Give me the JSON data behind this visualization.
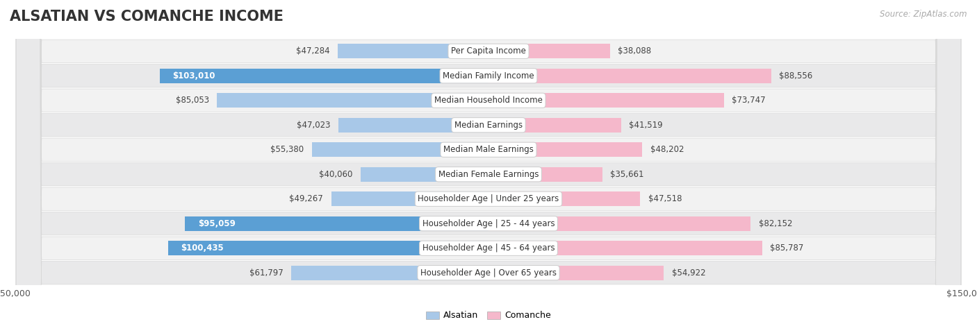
{
  "title": "ALSATIAN VS COMANCHE INCOME",
  "source": "Source: ZipAtlas.com",
  "categories": [
    "Per Capita Income",
    "Median Family Income",
    "Median Household Income",
    "Median Earnings",
    "Median Male Earnings",
    "Median Female Earnings",
    "Householder Age | Under 25 years",
    "Householder Age | 25 - 44 years",
    "Householder Age | 45 - 64 years",
    "Householder Age | Over 65 years"
  ],
  "alsatian_values": [
    47284,
    103010,
    85053,
    47023,
    55380,
    40060,
    49267,
    95059,
    100435,
    61797
  ],
  "comanche_values": [
    38088,
    88556,
    73747,
    41519,
    48202,
    35661,
    47518,
    82152,
    85787,
    54922
  ],
  "max_value": 150000,
  "alsatian_color_light": "#A8C8E8",
  "alsatian_color_dark": "#5B9FD4",
  "comanche_color_light": "#F5B8CB",
  "comanche_color_dark": "#E8648A",
  "alsatian_label": "Alsatian",
  "comanche_label": "Comanche",
  "bg_color": "#ffffff",
  "row_bg": "#f0f0f0",
  "row_bg_alt": "#e8e8e8",
  "label_dark_threshold": 0.6,
  "title_fontsize": 15,
  "value_fontsize": 8.5,
  "cat_fontsize": 8.5
}
